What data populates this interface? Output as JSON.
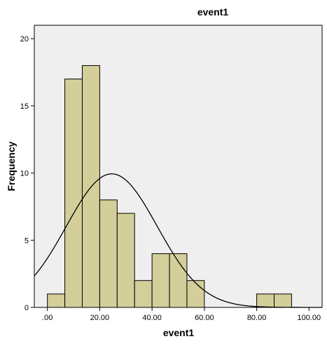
{
  "chart_data": {
    "type": "bar",
    "subtype": "histogram",
    "title": "event1",
    "xlabel": "event1",
    "ylabel": "Frequency",
    "xlim": [
      -5,
      105
    ],
    "ylim": [
      0,
      21
    ],
    "xticks": [
      0,
      20,
      40,
      60,
      80,
      100
    ],
    "xtick_labels": [
      ".00",
      "20.00",
      "40.00",
      "60.00",
      "80.00",
      "100.00"
    ],
    "yticks": [
      0,
      5,
      10,
      15,
      20
    ],
    "ytick_labels": [
      "0",
      "5",
      "10",
      "15",
      "20"
    ],
    "bin_width": 6.67,
    "bins": [
      {
        "x0": 0.0,
        "x1": 6.67,
        "count": 1
      },
      {
        "x0": 6.67,
        "x1": 13.33,
        "count": 17
      },
      {
        "x0": 13.33,
        "x1": 20.0,
        "count": 18
      },
      {
        "x0": 20.0,
        "x1": 26.67,
        "count": 8
      },
      {
        "x0": 26.67,
        "x1": 33.33,
        "count": 7
      },
      {
        "x0": 33.33,
        "x1": 40.0,
        "count": 2
      },
      {
        "x0": 40.0,
        "x1": 46.67,
        "count": 4
      },
      {
        "x0": 46.67,
        "x1": 53.33,
        "count": 4
      },
      {
        "x0": 53.33,
        "x1": 60.0,
        "count": 2
      },
      {
        "x0": 80.0,
        "x1": 86.67,
        "count": 1
      },
      {
        "x0": 86.67,
        "x1": 93.33,
        "count": 1
      }
    ],
    "normal_curve": {
      "mean": 24.6,
      "sd": 17.4,
      "n": 65
    },
    "grid": false,
    "colors": {
      "bar_fill": "#d3ce9a",
      "bar_stroke": "#000000",
      "plot_background": "#efefef",
      "curve": "#000000"
    }
  }
}
